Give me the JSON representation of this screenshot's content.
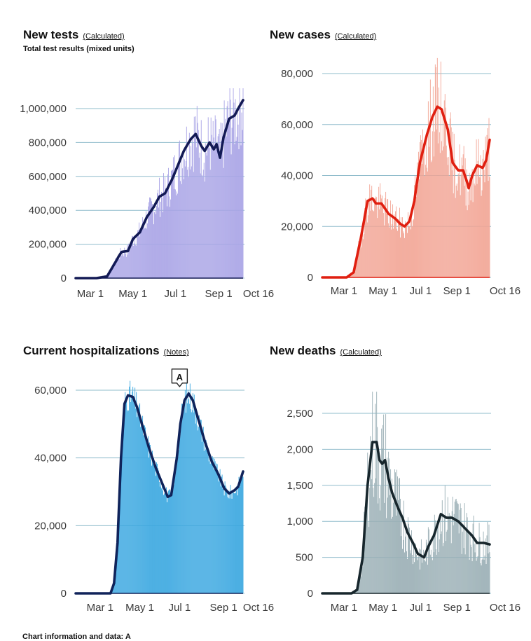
{
  "colors": {
    "tests_bar": "#a9a4e6",
    "tests_line": "#131a55",
    "cases_bar": "#f2a595",
    "cases_line": "#e01f10",
    "hosp_bar": "#3aa7e0",
    "hosp_line": "#10235a",
    "deaths_bar": "#9aafb5",
    "deaths_line": "#17262c",
    "grid": "#8fbccb"
  },
  "footer": "Chart information and data: A",
  "chart_data": [
    {
      "id": "tests",
      "type": "bar+line",
      "title": "New tests",
      "link": "(Calculated)",
      "subtitle": "Total test results (mixed units)",
      "y_ticks": [
        0,
        200000,
        400000,
        600000,
        800000,
        1000000
      ],
      "y_tick_labels": [
        "0",
        "200,000",
        "400,000",
        "600,000",
        "800,000",
        "1,000,000"
      ],
      "ylim": [
        0,
        1100000
      ],
      "x_ticks": [
        {
          "day": 21,
          "label": "Mar 1"
        },
        {
          "day": 82,
          "label": "May 1"
        },
        {
          "day": 143,
          "label": "Jul 1"
        },
        {
          "day": 205,
          "label": "Sep 1"
        },
        {
          "day": 240,
          "label": "Oct 16"
        }
      ],
      "x_range": [
        0,
        240
      ],
      "avg_keypoints": [
        [
          0,
          0
        ],
        [
          30,
          0
        ],
        [
          45,
          10000
        ],
        [
          55,
          80000
        ],
        [
          62,
          130000
        ],
        [
          66,
          155000
        ],
        [
          75,
          160000
        ],
        [
          82,
          230000
        ],
        [
          92,
          270000
        ],
        [
          102,
          360000
        ],
        [
          112,
          420000
        ],
        [
          120,
          480000
        ],
        [
          128,
          500000
        ],
        [
          138,
          580000
        ],
        [
          145,
          650000
        ],
        [
          155,
          750000
        ],
        [
          165,
          820000
        ],
        [
          172,
          850000
        ],
        [
          180,
          780000
        ],
        [
          185,
          750000
        ],
        [
          192,
          800000
        ],
        [
          198,
          760000
        ],
        [
          202,
          790000
        ],
        [
          207,
          710000
        ],
        [
          212,
          830000
        ],
        [
          220,
          940000
        ],
        [
          228,
          960000
        ],
        [
          233,
          1000000
        ],
        [
          240,
          1050000
        ]
      ],
      "bar_noise": 0.16
    },
    {
      "id": "cases",
      "type": "bar+line",
      "title": "New cases",
      "link": "(Calculated)",
      "y_ticks": [
        0,
        20000,
        40000,
        60000,
        80000
      ],
      "y_tick_labels": [
        "0",
        "20,000",
        "40,000",
        "60,000",
        "80,000"
      ],
      "ylim": [
        0,
        80000
      ],
      "x_ticks": [
        {
          "day": 31,
          "label": "Mar 1"
        },
        {
          "day": 87,
          "label": "May 1"
        },
        {
          "day": 141,
          "label": "Jul 1"
        },
        {
          "day": 193,
          "label": "Sep 1"
        },
        {
          "day": 240,
          "label": "Oct 16"
        }
      ],
      "x_range": [
        0,
        240
      ],
      "avg_keypoints": [
        [
          0,
          0
        ],
        [
          35,
          0
        ],
        [
          45,
          2000
        ],
        [
          55,
          15000
        ],
        [
          65,
          30000
        ],
        [
          72,
          31000
        ],
        [
          77,
          29000
        ],
        [
          85,
          29000
        ],
        [
          95,
          25000
        ],
        [
          105,
          23000
        ],
        [
          112,
          21000
        ],
        [
          118,
          20000
        ],
        [
          125,
          22000
        ],
        [
          132,
          30000
        ],
        [
          140,
          45000
        ],
        [
          150,
          56000
        ],
        [
          158,
          63000
        ],
        [
          165,
          67000
        ],
        [
          171,
          66000
        ],
        [
          180,
          58000
        ],
        [
          187,
          45000
        ],
        [
          195,
          42000
        ],
        [
          202,
          42000
        ],
        [
          207,
          38000
        ],
        [
          210,
          35000
        ],
        [
          215,
          40000
        ],
        [
          222,
          44000
        ],
        [
          230,
          43000
        ],
        [
          235,
          46000
        ],
        [
          240,
          54000
        ]
      ],
      "bar_noise": 0.18
    },
    {
      "id": "hosp",
      "type": "bar+line",
      "title": "Current hospitalizations",
      "link": "(Notes)",
      "y_ticks": [
        0,
        20000,
        40000,
        60000
      ],
      "y_tick_labels": [
        "0",
        "20,000",
        "40,000",
        "60,000"
      ],
      "ylim": [
        0,
        60000
      ],
      "x_ticks": [
        {
          "day": 35,
          "label": "Mar 1"
        },
        {
          "day": 92,
          "label": "May 1"
        },
        {
          "day": 149,
          "label": "Jul 1"
        },
        {
          "day": 212,
          "label": "Sep 1"
        },
        {
          "day": 240,
          "label": "Oct 16"
        }
      ],
      "x_range": [
        0,
        240
      ],
      "avg_keypoints": [
        [
          0,
          0
        ],
        [
          50,
          0
        ],
        [
          55,
          3000
        ],
        [
          60,
          15000
        ],
        [
          65,
          40000
        ],
        [
          70,
          56000
        ],
        [
          75,
          58500
        ],
        [
          82,
          58000
        ],
        [
          88,
          55000
        ],
        [
          95,
          50000
        ],
        [
          105,
          43000
        ],
        [
          115,
          37000
        ],
        [
          125,
          32000
        ],
        [
          132,
          28500
        ],
        [
          137,
          29000
        ],
        [
          145,
          40000
        ],
        [
          150,
          50000
        ],
        [
          156,
          57000
        ],
        [
          162,
          59000
        ],
        [
          168,
          57000
        ],
        [
          175,
          52000
        ],
        [
          185,
          45000
        ],
        [
          195,
          39000
        ],
        [
          205,
          35000
        ],
        [
          213,
          31000
        ],
        [
          220,
          29500
        ],
        [
          228,
          30500
        ],
        [
          233,
          31500
        ],
        [
          240,
          36000
        ]
      ],
      "bar_noise": 0.05,
      "annotation": {
        "label": "A",
        "day": 149,
        "value": 59000
      }
    },
    {
      "id": "deaths",
      "type": "bar+line",
      "title": "New deaths",
      "link": "(Calculated)",
      "y_ticks": [
        0,
        500,
        1000,
        1500,
        2000,
        2500
      ],
      "y_tick_labels": [
        "0",
        "500",
        "1,000",
        "1,500",
        "2,000",
        "2,500"
      ],
      "ylim": [
        0,
        2750
      ],
      "x_ticks": [
        {
          "day": 31,
          "label": "Mar 1"
        },
        {
          "day": 87,
          "label": "May 1"
        },
        {
          "day": 141,
          "label": "Jul 1"
        },
        {
          "day": 193,
          "label": "Sep 1"
        },
        {
          "day": 240,
          "label": "Oct 16"
        }
      ],
      "x_range": [
        0,
        240
      ],
      "avg_keypoints": [
        [
          0,
          0
        ],
        [
          42,
          0
        ],
        [
          50,
          50
        ],
        [
          58,
          500
        ],
        [
          65,
          1500
        ],
        [
          72,
          2100
        ],
        [
          78,
          2100
        ],
        [
          82,
          1850
        ],
        [
          86,
          1800
        ],
        [
          90,
          1850
        ],
        [
          95,
          1600
        ],
        [
          100,
          1400
        ],
        [
          108,
          1200
        ],
        [
          115,
          1050
        ],
        [
          122,
          850
        ],
        [
          130,
          700
        ],
        [
          137,
          550
        ],
        [
          146,
          500
        ],
        [
          152,
          650
        ],
        [
          160,
          800
        ],
        [
          170,
          1100
        ],
        [
          178,
          1050
        ],
        [
          186,
          1050
        ],
        [
          195,
          1000
        ],
        [
          205,
          900
        ],
        [
          215,
          800
        ],
        [
          222,
          700
        ],
        [
          232,
          700
        ],
        [
          240,
          680
        ]
      ],
      "bar_noise": 0.28
    }
  ]
}
